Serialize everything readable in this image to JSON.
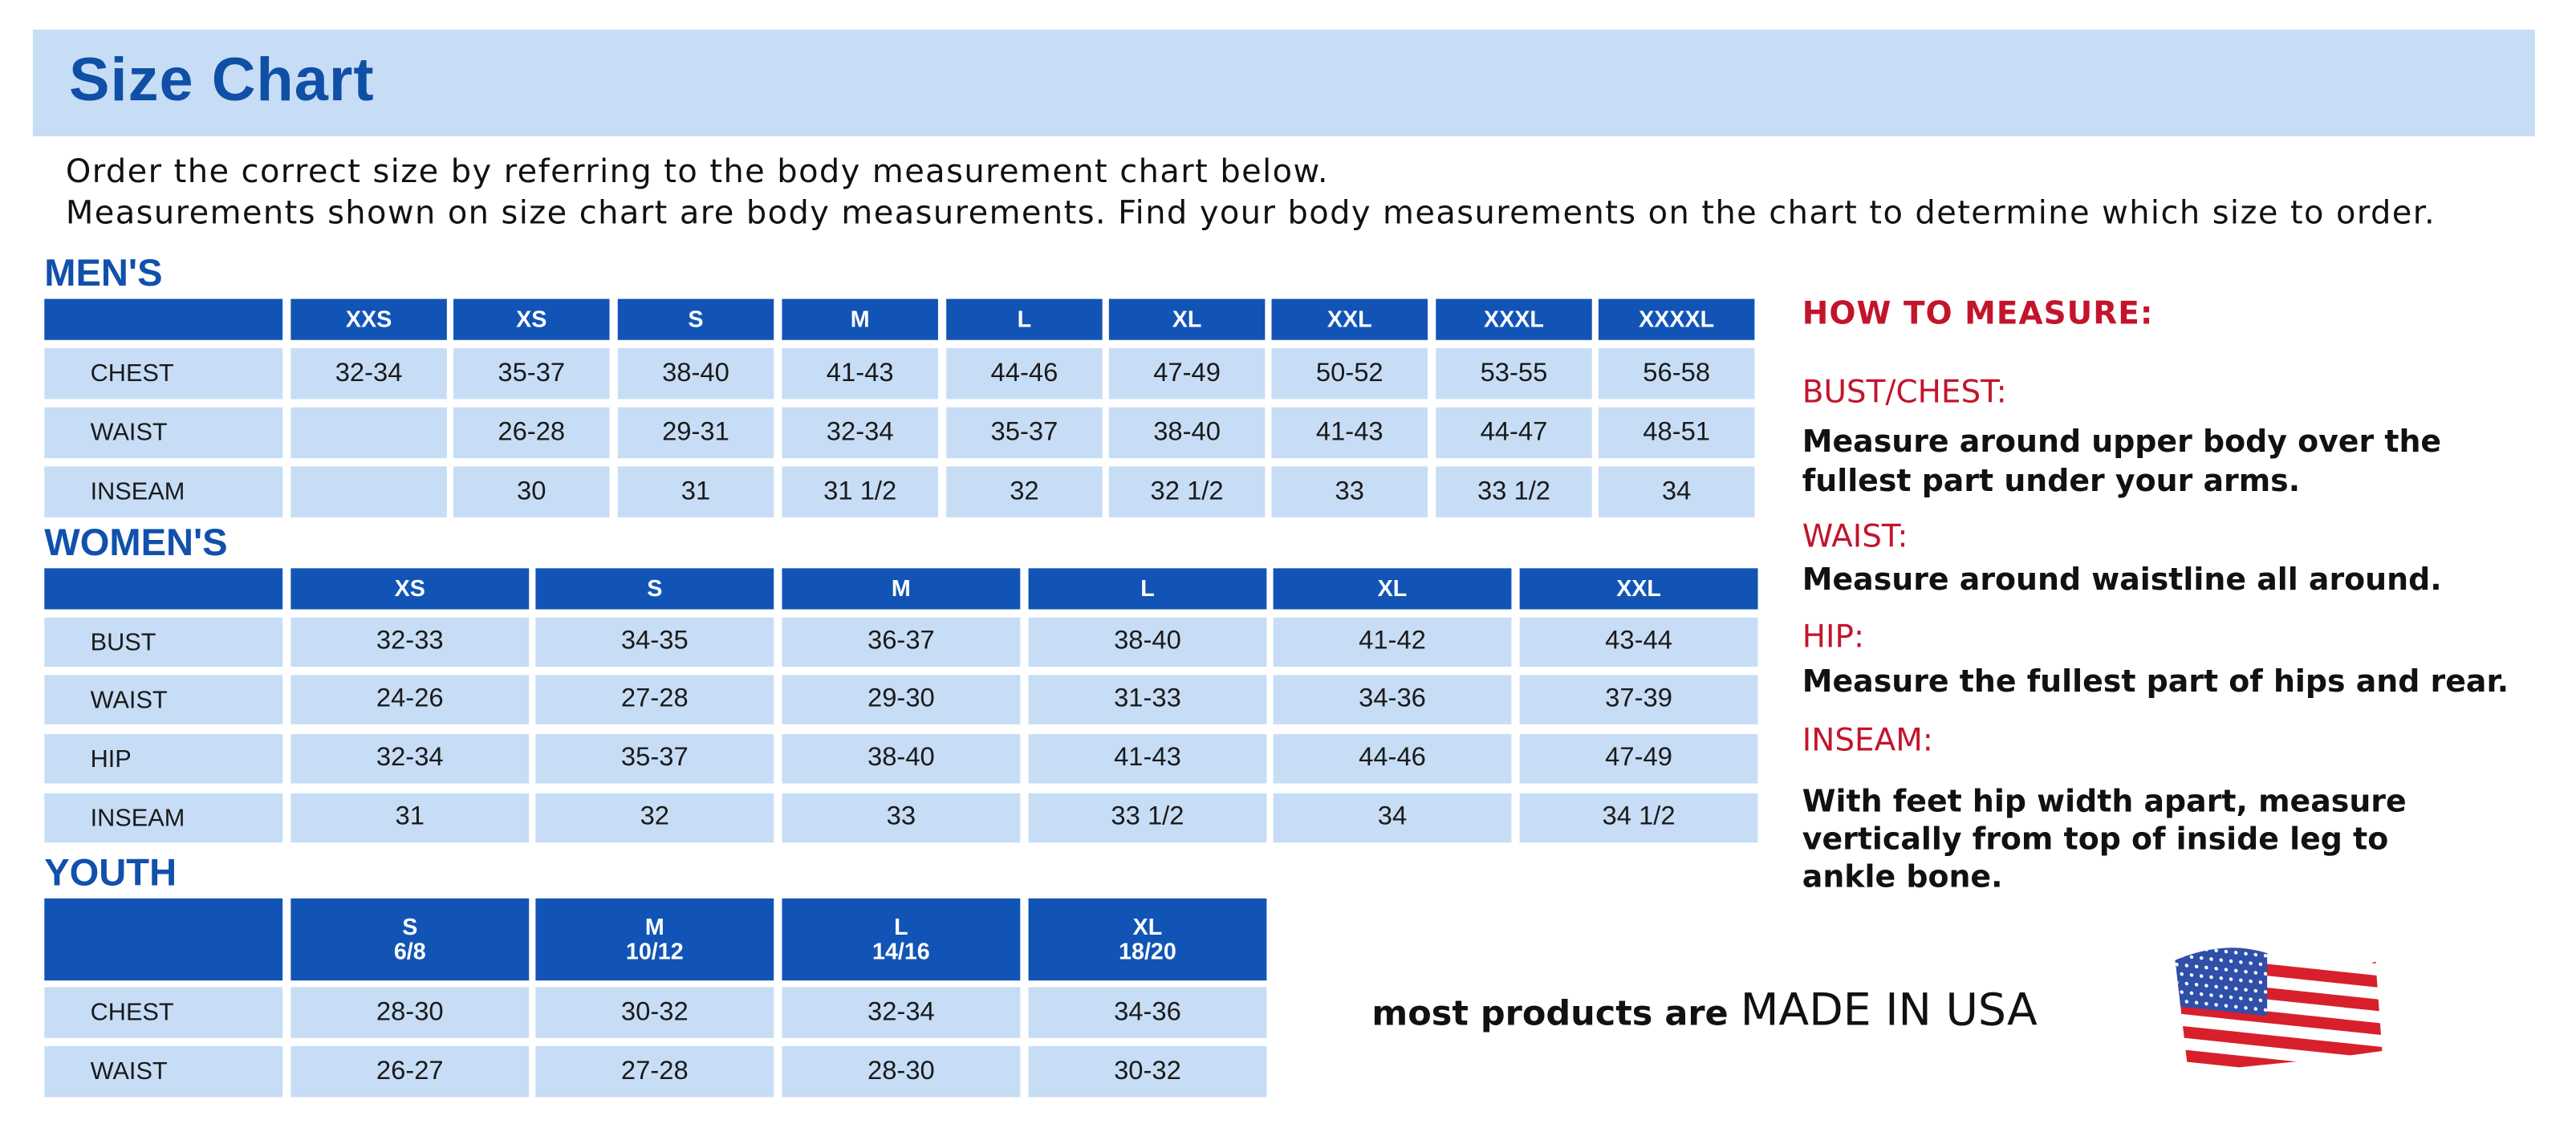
{
  "header": {
    "title": "Size Chart"
  },
  "intro": [
    "Order the correct size by referring to the body measurement chart below.",
    "Measurements shown on size chart are body measurements.  Find your body measurements on the chart to determine which size to order."
  ],
  "mens": {
    "label": "MEN'S",
    "sizes": [
      "XXS",
      "XS",
      "S",
      "M",
      "L",
      "XL",
      "XXL",
      "XXXL",
      "XXXXL"
    ],
    "rows": [
      {
        "label": "CHEST",
        "values": [
          "32-34",
          "35-37",
          "38-40",
          "41-43",
          "44-46",
          "47-49",
          "50-52",
          "53-55",
          "56-58"
        ]
      },
      {
        "label": "WAIST",
        "values": [
          "",
          "26-28",
          "29-31",
          "32-34",
          "35-37",
          "38-40",
          "41-43",
          "44-47",
          "48-51"
        ]
      },
      {
        "label": "INSEAM",
        "values": [
          "",
          "30",
          "31",
          "31 1/2",
          "32",
          "32 1/2",
          "33",
          "33 1/2",
          "34"
        ]
      }
    ]
  },
  "womens": {
    "label": "WOMEN'S",
    "sizes": [
      "XS",
      "S",
      "M",
      "L",
      "XL",
      "XXL"
    ],
    "rows": [
      {
        "label": "BUST",
        "values": [
          "32-33",
          "34-35",
          "36-37",
          "38-40",
          "41-42",
          "43-44"
        ]
      },
      {
        "label": "WAIST",
        "values": [
          "24-26",
          "27-28",
          "29-30",
          "31-33",
          "34-36",
          "37-39"
        ]
      },
      {
        "label": "HIP",
        "values": [
          "32-34",
          "35-37",
          "38-40",
          "41-43",
          "44-46",
          "47-49"
        ]
      },
      {
        "label": "INSEAM",
        "values": [
          "31",
          "32",
          "33",
          "33 1/2",
          "34",
          "34 1/2"
        ]
      }
    ]
  },
  "youth": {
    "label": "YOUTH",
    "sizes": [
      "S\n6/8",
      "M\n10/12",
      "L\n14/16",
      "XL\n18/20"
    ],
    "rows": [
      {
        "label": "CHEST",
        "values": [
          "28-30",
          "30-32",
          "32-34",
          "34-36"
        ]
      },
      {
        "label": "WAIST",
        "values": [
          "26-27",
          "27-28",
          "28-30",
          "30-32"
        ]
      }
    ]
  },
  "how_to_measure": {
    "heading": "HOW TO MEASURE:",
    "items": [
      {
        "term": "BUST/CHEST:",
        "lines": [
          "Measure around upper body over the",
          "fullest part under your arms."
        ]
      },
      {
        "term": "WAIST:",
        "lines": [
          "Measure around waistline all around."
        ]
      },
      {
        "term": "HIP:",
        "lines": [
          "Measure the fullest part of hips and rear."
        ]
      },
      {
        "term": "INSEAM:",
        "lines": [
          "With feet hip width apart, measure",
          "vertically from top of inside leg to",
          "ankle bone."
        ]
      }
    ]
  },
  "footer": {
    "prefix": "most products are ",
    "emphasis": "MADE IN USA",
    "flag_icon": "us-flag-icon"
  },
  "colors": {
    "banner": "#c7ddf6",
    "title": "#0f4fa6",
    "header_cell": "#1254b6",
    "body_cell": "#c7ddf6",
    "accent_red": "#c3142c"
  }
}
